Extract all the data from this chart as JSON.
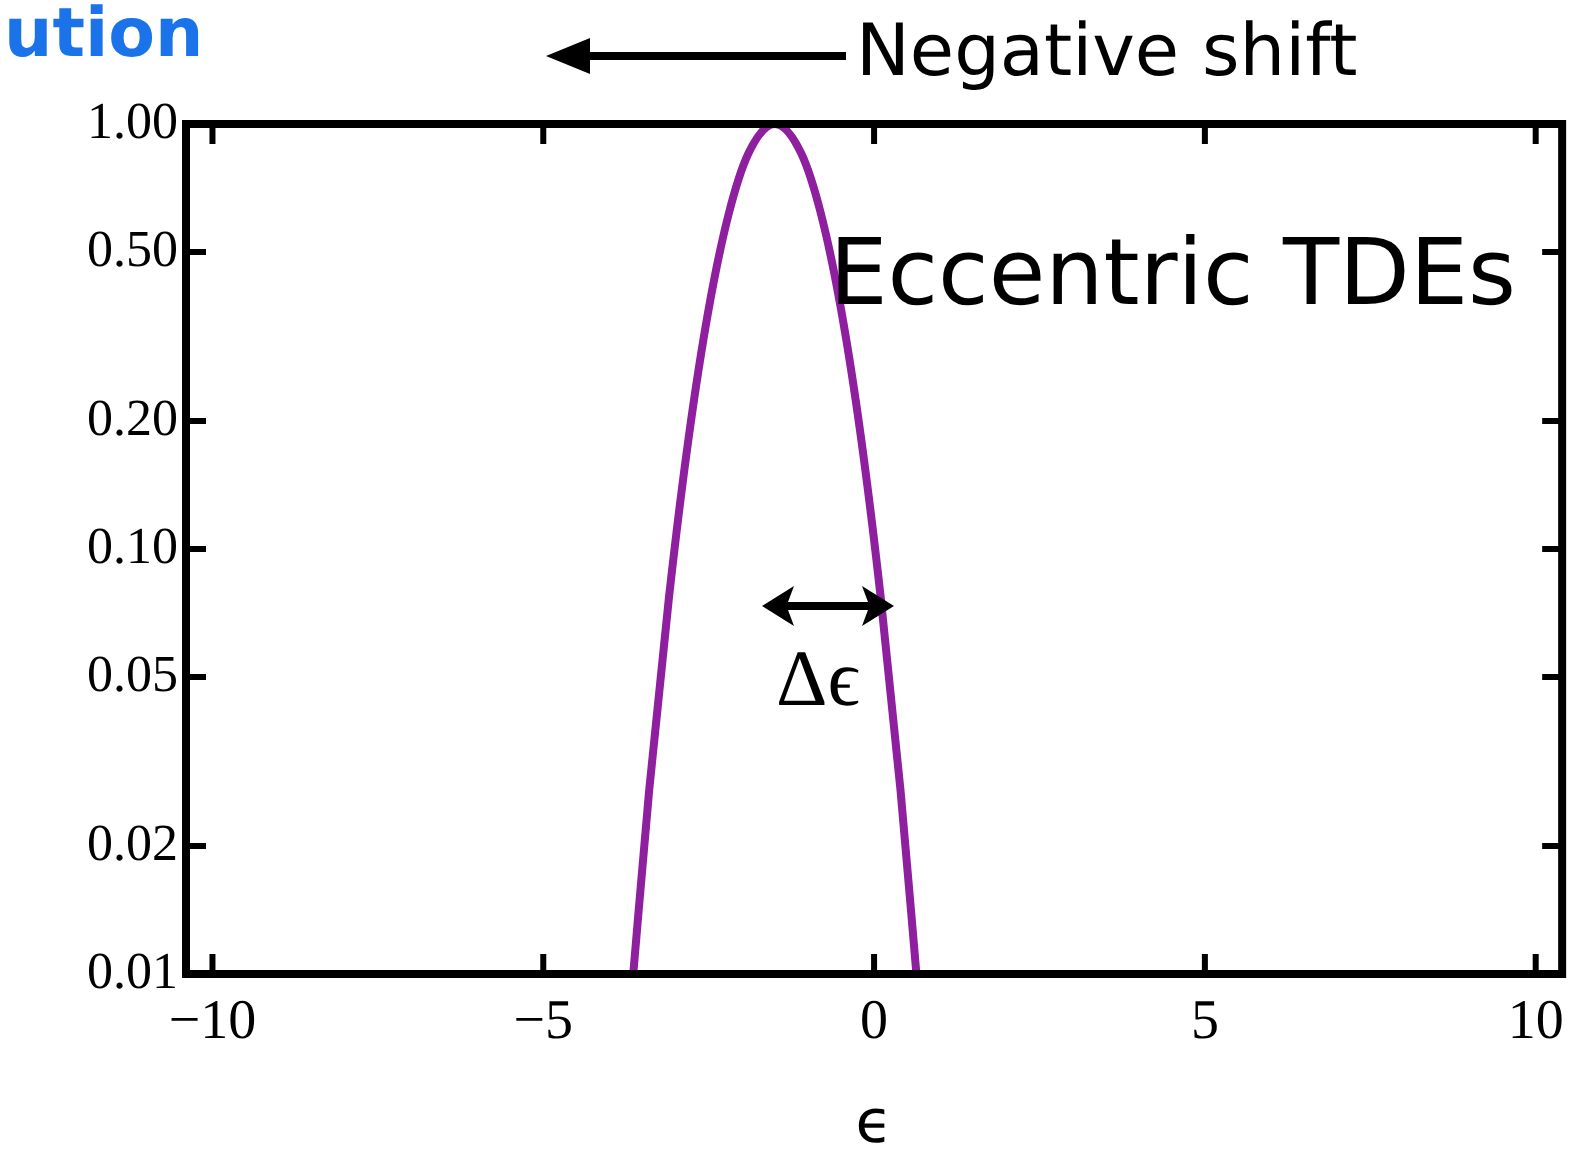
{
  "chart_data": {
    "type": "line",
    "title": "ution",
    "xlabel": "ϵ",
    "x": [
      -3.64,
      -3.4,
      -3.1,
      -2.8,
      -2.5,
      -2.2,
      -1.9,
      -1.5,
      -1.1,
      -0.8,
      -0.5,
      -0.2,
      0.1,
      0.4,
      0.64
    ],
    "series": [
      {
        "color": "#8e1f9e",
        "values": [
          0.01,
          0.027,
          0.077,
          0.184,
          0.367,
          0.612,
          0.852,
          1.0,
          0.852,
          0.612,
          0.367,
          0.184,
          0.077,
          0.027,
          0.01
        ]
      }
    ],
    "xlim": [
      -10.4,
      10.4
    ],
    "ylim": [
      0.01,
      1
    ],
    "log": true,
    "xticks": [
      {
        "value": -10,
        "label": "−10"
      },
      {
        "value": -5,
        "label": "−5"
      },
      0,
      5,
      10
    ],
    "yticks": [
      {
        "value": 0.01,
        "label": "0.01"
      },
      {
        "value": 0.02,
        "label": "0.02"
      },
      {
        "value": 0.05,
        "label": "0.05"
      },
      {
        "value": 0.1,
        "label": "0.10"
      },
      {
        "value": 0.2,
        "label": "0.20"
      },
      {
        "value": 0.5,
        "label": "0.50"
      },
      {
        "value": 1,
        "label": "1.00"
      }
    ],
    "grid": false,
    "legend": false,
    "marker": "none",
    "line_style": "solid",
    "annotations": [
      "Negative shift",
      "Eccentric TDEs",
      "Δϵ"
    ]
  }
}
